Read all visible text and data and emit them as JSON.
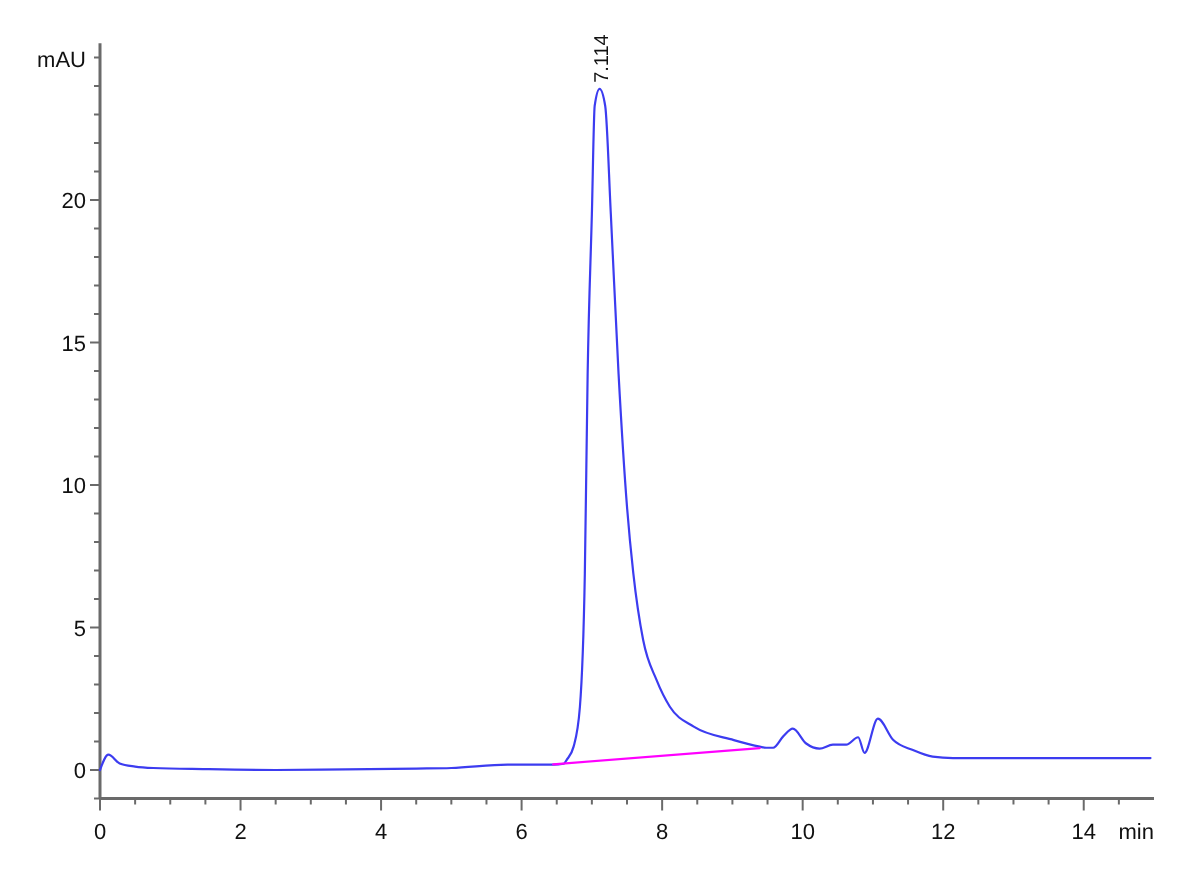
{
  "chart_data": {
    "type": "line",
    "xlabel": "min",
    "ylabel": "mAU",
    "xlim": [
      0,
      15
    ],
    "ylim": [
      -1,
      25.5
    ],
    "xticks": [
      0,
      {
        "value": 0.5,
        "label": null
      },
      {
        "value": 1,
        "label": null
      },
      {
        "value": 1.5,
        "label": null
      },
      2,
      {
        "value": 2.5,
        "label": null
      },
      {
        "value": 3,
        "label": null
      },
      {
        "value": 3.5,
        "label": null
      },
      4,
      {
        "value": 4.5,
        "label": null
      },
      {
        "value": 5,
        "label": null
      },
      {
        "value": 5.5,
        "label": null
      },
      6,
      {
        "value": 6.5,
        "label": null
      },
      {
        "value": 7,
        "label": null
      },
      {
        "value": 7.5,
        "label": null
      },
      8,
      {
        "value": 8.5,
        "label": null
      },
      {
        "value": 9,
        "label": null
      },
      {
        "value": 9.5,
        "label": null
      },
      10,
      {
        "value": 10.5,
        "label": null
      },
      {
        "value": 11,
        "label": null
      },
      {
        "value": 11.5,
        "label": null
      },
      12,
      {
        "value": 12.5,
        "label": null
      },
      {
        "value": 13,
        "label": null
      },
      {
        "value": 13.5,
        "label": null
      },
      14,
      {
        "value": 14.5,
        "label": null
      }
    ],
    "yticks": [
      {
        "value": -1,
        "label": null
      },
      0,
      {
        "value": 1,
        "label": null
      },
      {
        "value": 2,
        "label": null
      },
      {
        "value": 3,
        "label": null
      },
      {
        "value": 4,
        "label": null
      },
      5,
      {
        "value": 6,
        "label": null
      },
      {
        "value": 7,
        "label": null
      },
      {
        "value": 8,
        "label": null
      },
      {
        "value": 9,
        "label": null
      },
      10,
      {
        "value": 11,
        "label": null
      },
      {
        "value": 12,
        "label": null
      },
      {
        "value": 13,
        "label": null
      },
      {
        "value": 14,
        "label": null
      },
      15,
      {
        "value": 16,
        "label": null
      },
      {
        "value": 17,
        "label": null
      },
      {
        "value": 18,
        "label": null
      },
      {
        "value": 19,
        "label": null
      },
      20,
      {
        "value": 21,
        "label": null
      },
      {
        "value": 22,
        "label": null
      },
      {
        "value": 23,
        "label": null
      },
      {
        "value": 24,
        "label": null
      },
      {
        "value": 25,
        "label": null
      }
    ],
    "annotations": [
      {
        "text": "7.114",
        "x": 7.114,
        "y": 23.9
      }
    ],
    "line_style": "solid",
    "series": [
      {
        "color": "#3c3cf0",
        "x": [
          0,
          0.12,
          0.28,
          0.5,
          0.76,
          1.5,
          2.5,
          3.5,
          4.5,
          5.0,
          5.8,
          6.45,
          6.6,
          6.64,
          6.74,
          6.83,
          6.9,
          6.94,
          7.0,
          7.04,
          7.11,
          7.19,
          7.27,
          7.38,
          7.5,
          7.59,
          7.73,
          7.92,
          8.11,
          8.45,
          9.02,
          9.39,
          9.48,
          9.58,
          9.72,
          9.86,
          10.05,
          10.24,
          10.43,
          10.62,
          10.79,
          10.88,
          11.07,
          11.29,
          11.57,
          11.85,
          12.14,
          13,
          14,
          14.95
        ],
        "values": [
          0,
          0.54,
          0.23,
          0.12,
          0.07,
          0.03,
          0,
          0.02,
          0.05,
          0.07,
          0.19,
          0.19,
          0.22,
          0.35,
          0.82,
          2.22,
          6.9,
          13.9,
          19.5,
          23.3,
          23.9,
          23.3,
          19.5,
          13.9,
          9.24,
          6.9,
          4.56,
          3.16,
          2.22,
          1.52,
          1.05,
          0.82,
          0.78,
          0.78,
          1.17,
          1.45,
          0.93,
          0.75,
          0.89,
          0.89,
          1.15,
          0.6,
          1.8,
          1.05,
          0.7,
          0.47,
          0.42,
          0.42,
          0.42,
          0.42
        ]
      },
      {
        "color": "#ff00ff",
        "x": [
          6.45,
          9.39
        ],
        "values": [
          0.2,
          0.77
        ]
      }
    ]
  }
}
